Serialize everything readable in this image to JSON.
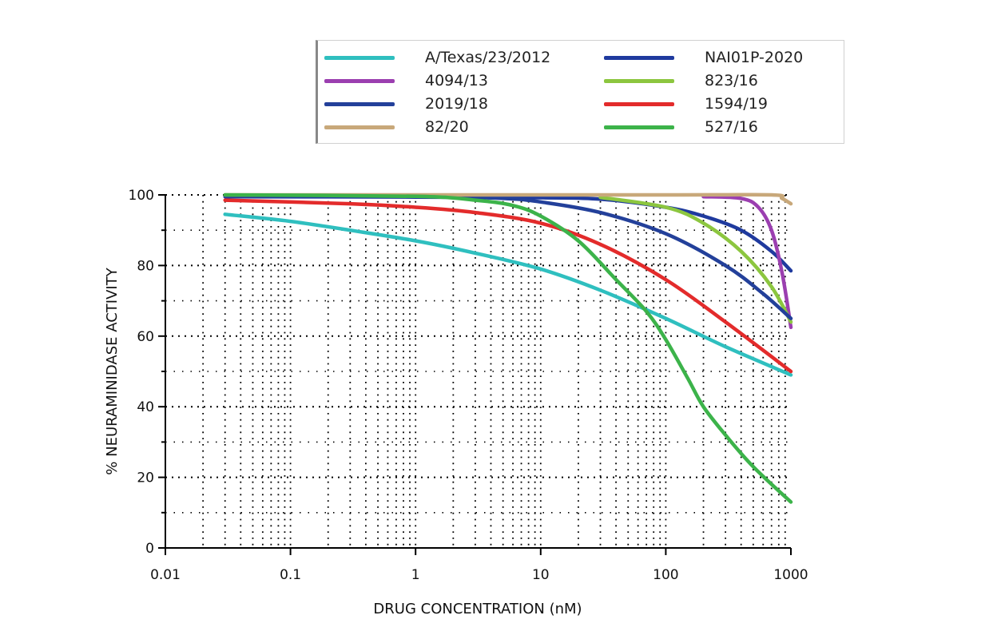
{
  "chart_data": {
    "type": "line",
    "title": "",
    "xlabel": "DRUG CONCENTRATION (nM)",
    "ylabel": "% NEURAMINIDASE ACTIVITY",
    "xscale": "log",
    "xlim": [
      0.01,
      1000
    ],
    "ylim": [
      0,
      100
    ],
    "x_ticks": [
      "0.01",
      "0.1",
      "1",
      "10",
      "100",
      "1000"
    ],
    "y_ticks": [
      "0",
      "20",
      "40",
      "60",
      "80",
      "100"
    ],
    "grid": "dotted",
    "legend": "top",
    "series": [
      {
        "name": "A/Texas/23/2012",
        "color": "#2fbfbf",
        "points": [
          [
            0.03,
            94.5
          ],
          [
            0.1,
            92.5
          ],
          [
            0.3,
            90
          ],
          [
            1,
            87
          ],
          [
            3,
            83.5
          ],
          [
            10,
            79
          ],
          [
            30,
            73
          ],
          [
            100,
            65
          ],
          [
            300,
            57
          ],
          [
            1000,
            49
          ]
        ]
      },
      {
        "name": "NAI01P-2020",
        "color": "#1f3a9e",
        "points": [
          [
            0.03,
            99.5
          ],
          [
            1,
            99.4
          ],
          [
            10,
            99.2
          ],
          [
            30,
            98.8
          ],
          [
            100,
            96.5
          ],
          [
            200,
            94
          ],
          [
            400,
            90
          ],
          [
            700,
            84
          ],
          [
            1000,
            78.5
          ]
        ]
      },
      {
        "name": "4094/13",
        "color": "#9b3fb0",
        "points": [
          [
            200,
            99.5
          ],
          [
            400,
            99
          ],
          [
            550,
            96.5
          ],
          [
            700,
            90
          ],
          [
            850,
            78
          ],
          [
            1000,
            62.5
          ]
        ]
      },
      {
        "name": "823/16",
        "color": "#8cc63f",
        "points": [
          [
            30,
            99.3
          ],
          [
            100,
            96.5
          ],
          [
            200,
            92
          ],
          [
            400,
            84
          ],
          [
            700,
            74
          ],
          [
            1000,
            64
          ]
        ]
      },
      {
        "name": "2019/18",
        "color": "#23409a",
        "points": [
          [
            0.03,
            99.8
          ],
          [
            1,
            99.6
          ],
          [
            5,
            99
          ],
          [
            10,
            98
          ],
          [
            30,
            95
          ],
          [
            100,
            89
          ],
          [
            300,
            80
          ],
          [
            600,
            72
          ],
          [
            1000,
            65
          ]
        ]
      },
      {
        "name": "1594/19",
        "color": "#e32b2b",
        "points": [
          [
            0.03,
            98.5
          ],
          [
            0.3,
            97.5
          ],
          [
            1,
            96.5
          ],
          [
            3,
            95
          ],
          [
            10,
            92
          ],
          [
            30,
            86
          ],
          [
            100,
            76
          ],
          [
            300,
            64
          ],
          [
            1000,
            50
          ]
        ]
      },
      {
        "name": "82/20",
        "color": "#c8a87a",
        "points": [
          [
            0.03,
            100
          ],
          [
            100,
            100
          ],
          [
            700,
            100
          ],
          [
            850,
            99
          ],
          [
            1000,
            97.5
          ]
        ]
      },
      {
        "name": "527/16",
        "color": "#3cb34a",
        "points": [
          [
            0.03,
            100
          ],
          [
            1,
            99.6
          ],
          [
            3,
            98.5
          ],
          [
            6,
            97
          ],
          [
            10,
            94
          ],
          [
            20,
            87
          ],
          [
            40,
            76
          ],
          [
            70,
            67
          ],
          [
            100,
            59
          ],
          [
            150,
            48
          ],
          [
            200,
            40
          ],
          [
            300,
            32
          ],
          [
            500,
            23
          ],
          [
            1000,
            13
          ]
        ]
      }
    ]
  }
}
